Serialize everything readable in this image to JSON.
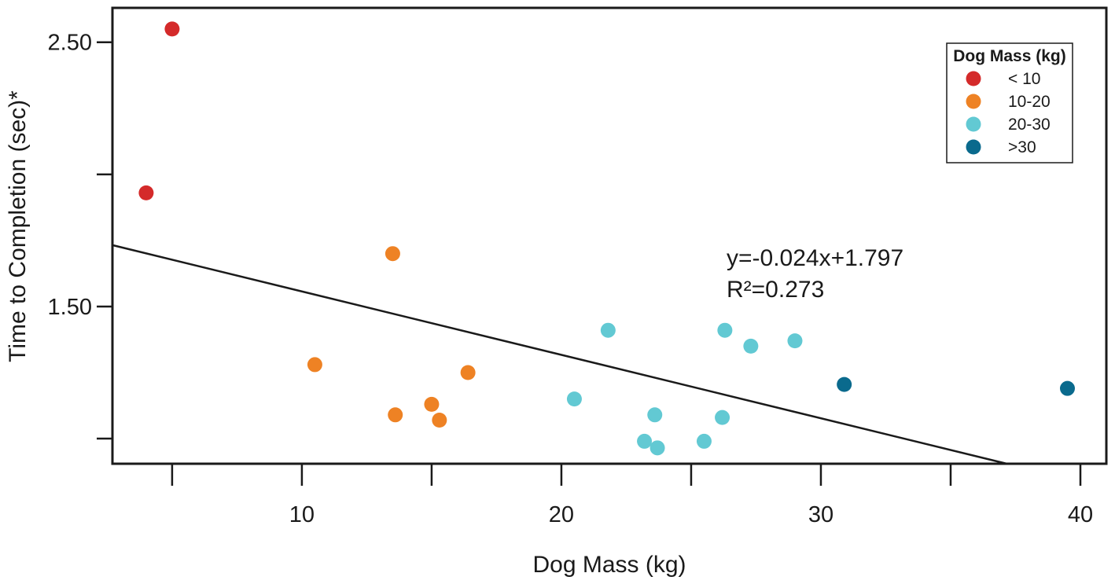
{
  "chart_data": {
    "type": "scatter",
    "title": "",
    "xlabel": "Dog Mass (kg)",
    "ylabel": "Time to Completion (sec)*",
    "xlim": [
      2.7,
      41.0
    ],
    "ylim": [
      0.905,
      2.63
    ],
    "x_ticks": [
      5,
      10,
      15,
      20,
      25,
      30,
      35,
      40
    ],
    "x_tick_labels": [
      "",
      "10",
      "",
      "20",
      "",
      "30",
      "",
      "40"
    ],
    "y_ticks": [
      1.0,
      1.5,
      2.0,
      2.5
    ],
    "y_tick_labels": [
      "",
      "1.50",
      "",
      "2.50"
    ],
    "grid": false,
    "legend_position": "top-right",
    "legend_title": "Dog Mass (kg)",
    "series": [
      {
        "name": "< 10",
        "color": "#d42a2a",
        "points": [
          [
            5.0,
            2.55
          ],
          [
            4.0,
            1.93
          ]
        ]
      },
      {
        "name": "10-20",
        "color": "#ee8224",
        "points": [
          [
            13.5,
            1.7
          ],
          [
            10.5,
            1.28
          ],
          [
            16.4,
            1.25
          ],
          [
            13.6,
            1.09
          ],
          [
            15.0,
            1.13
          ],
          [
            15.3,
            1.07
          ]
        ]
      },
      {
        "name": "20-30",
        "color": "#62c9d3",
        "points": [
          [
            21.8,
            1.41
          ],
          [
            26.3,
            1.41
          ],
          [
            27.3,
            1.35
          ],
          [
            29.0,
            1.37
          ],
          [
            20.5,
            1.15
          ],
          [
            23.6,
            1.09
          ],
          [
            26.2,
            1.08
          ],
          [
            23.2,
            0.99
          ],
          [
            23.7,
            0.965
          ],
          [
            25.5,
            0.99
          ]
        ]
      },
      {
        "name": ">30",
        "color": "#0a6a8d",
        "points": [
          [
            30.9,
            1.205
          ],
          [
            39.5,
            1.19
          ]
        ]
      }
    ],
    "regression": {
      "equation": "y=-0.024x+1.797",
      "r_squared": "R²=0.273",
      "slope": -0.024,
      "intercept": 1.797
    }
  }
}
